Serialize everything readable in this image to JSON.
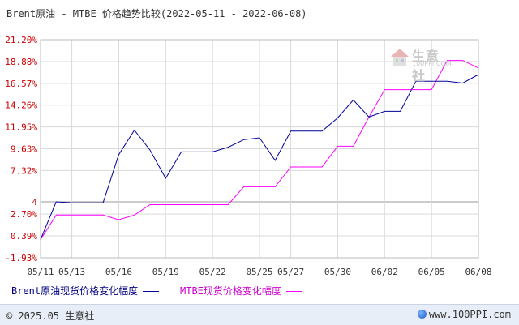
{
  "title": "Brent原油 - MTBE 价格趋势比较(2022-05-11 - 2022-06-08)",
  "footer": {
    "copyright": "© 2025.05 生意社",
    "site": "www.100PPI.com"
  },
  "watermark": {
    "name": "生意社",
    "domain": "100PPI.COM"
  },
  "colors": {
    "brent": "#000099",
    "mtbe": "#ff00ff",
    "grid": "#d9d9d9",
    "axis_label": "#cc0000",
    "footer_bg": "#e8eef7"
  },
  "chart_data": {
    "type": "line",
    "title": "Brent原油 - MTBE 价格趋势比较(2022-05-11 - 2022-06-08)",
    "ylim": [
      -1.93,
      21.2
    ],
    "y_ticks": [
      "21.20%",
      "18.88%",
      "16.57%",
      "14.26%",
      "11.95%",
      "9.63%",
      "7.32%",
      "4",
      "2.70%",
      "0.39%",
      "-1.93%"
    ],
    "y_tick_values": [
      21.2,
      18.88,
      16.57,
      14.26,
      11.95,
      9.63,
      7.32,
      4.0,
      2.7,
      0.39,
      -1.93
    ],
    "reference_line": 4.0,
    "x_labels": [
      "05/11",
      "05/13",
      "05/16",
      "05/19",
      "05/22",
      "05/25",
      "05/27",
      "05/30",
      "06/02",
      "06/05",
      "06/08"
    ],
    "x_label_days": [
      0,
      2,
      5,
      8,
      11,
      14,
      16,
      19,
      22,
      25,
      28
    ],
    "x_range": [
      0,
      28
    ],
    "series": [
      {
        "name": "Brent原油现货价格变化幅度",
        "days": [
          0,
          1,
          2,
          3,
          4,
          5,
          6,
          7,
          8,
          9,
          10,
          11,
          12,
          13,
          14,
          15,
          16,
          17,
          18,
          19,
          20,
          21,
          22,
          23,
          24,
          25,
          26,
          27,
          28
        ],
        "values": [
          0.0,
          4.0,
          3.9,
          3.9,
          3.9,
          9.0,
          11.6,
          9.5,
          6.5,
          9.3,
          9.3,
          9.3,
          9.8,
          10.6,
          10.8,
          8.4,
          11.5,
          11.5,
          11.5,
          12.9,
          14.8,
          13.0,
          13.6,
          13.6,
          16.8,
          16.8,
          16.8,
          16.6,
          17.5
        ]
      },
      {
        "name": "MTBE现货价格变化幅度",
        "days": [
          0,
          1,
          2,
          3,
          4,
          5,
          6,
          7,
          8,
          9,
          10,
          11,
          12,
          13,
          14,
          15,
          16,
          17,
          18,
          19,
          20,
          21,
          22,
          23,
          24,
          25,
          26,
          27,
          28
        ],
        "values": [
          0.0,
          2.6,
          2.6,
          2.6,
          2.6,
          2.1,
          2.6,
          3.7,
          3.7,
          3.7,
          3.7,
          3.7,
          3.7,
          5.6,
          5.6,
          5.6,
          7.7,
          7.7,
          7.7,
          9.9,
          9.9,
          13.0,
          15.9,
          15.9,
          15.9,
          15.9,
          19.0,
          19.0,
          18.2
        ]
      }
    ],
    "legend_position": "bottom"
  }
}
